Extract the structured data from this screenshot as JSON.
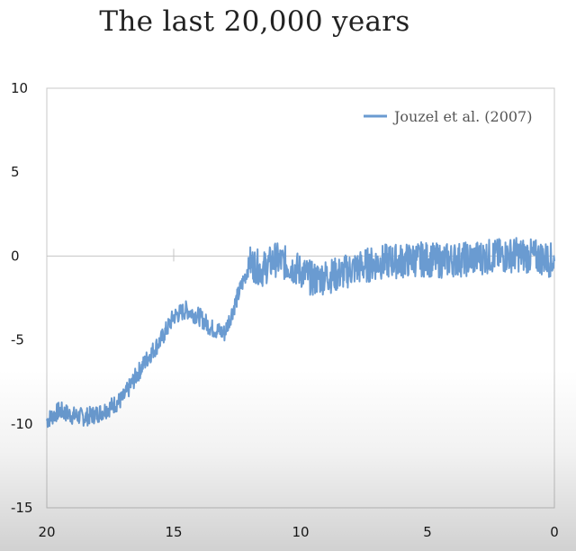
{
  "chart_data": {
    "type": "line",
    "title": "The last 20,000 years",
    "xlabel": "",
    "ylabel": "",
    "xlim": [
      20,
      0
    ],
    "ylim": [
      -15,
      10
    ],
    "x_ticks": [
      "20",
      "15",
      "10",
      "5",
      "0"
    ],
    "y_ticks": [
      "10",
      "5",
      "0",
      "-5",
      "-10",
      "-15"
    ],
    "grid": false,
    "legend_position": "top-right",
    "series": [
      {
        "name": "Jouzel et al. (2007)",
        "color": "#6a9bd1",
        "x": [
          20,
          19.5,
          19,
          18.5,
          18,
          17.5,
          17,
          16.5,
          16,
          15.5,
          15,
          14.5,
          14,
          13.5,
          13,
          12.5,
          12,
          11.5,
          11,
          10.5,
          10,
          9.5,
          9,
          8.5,
          8,
          7.5,
          7,
          6.5,
          6,
          5.5,
          5,
          4.5,
          4,
          3.5,
          3,
          2.5,
          2,
          1.5,
          1,
          0.5,
          0
        ],
        "y": [
          -9.8,
          -9.2,
          -9.5,
          -9.6,
          -9.4,
          -9,
          -8.5,
          -7.2,
          -6,
          -5,
          -3.6,
          -3.2,
          -3.6,
          -4.3,
          -4.6,
          -2.5,
          -0.4,
          -0.8,
          -0.2,
          -0.5,
          -0.9,
          -1.4,
          -1.2,
          -1.1,
          -0.8,
          -0.6,
          -0.4,
          -0.3,
          -0.3,
          -0.2,
          -0.2,
          -0.3,
          -0.2,
          -0.2,
          -0.1,
          0,
          0,
          0.1,
          0,
          -0.1,
          -0.3
        ]
      }
    ]
  }
}
